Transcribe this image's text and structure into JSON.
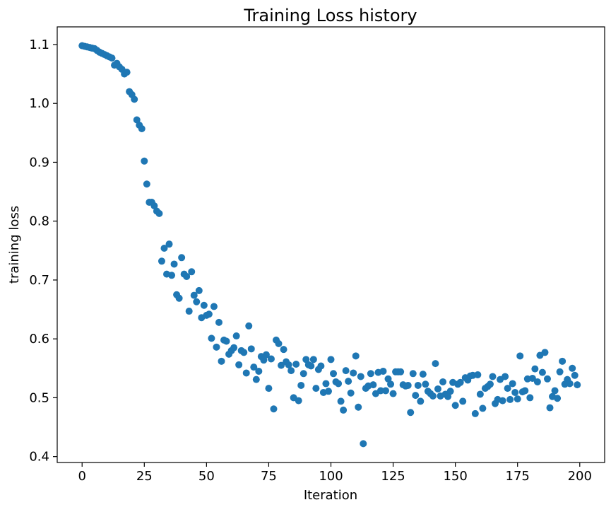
{
  "chart_data": {
    "type": "scatter",
    "title": "Training Loss history",
    "xlabel": "Iteration",
    "ylabel": "training loss",
    "xlim": [
      -10,
      210
    ],
    "ylim": [
      0.39,
      1.13
    ],
    "xticks": [
      0,
      25,
      50,
      75,
      100,
      125,
      150,
      175,
      200
    ],
    "xtick_labels": [
      "0",
      "25",
      "50",
      "75",
      "100",
      "125",
      "150",
      "175",
      "200"
    ],
    "yticks": [
      0.4,
      0.5,
      0.6,
      0.7,
      0.8,
      0.9,
      1.0,
      1.1
    ],
    "ytick_labels": [
      "0.4",
      "0.5",
      "0.6",
      "0.7",
      "0.8",
      "0.9",
      "1.0",
      "1.1"
    ],
    "grid": false,
    "marker_color": "#1f77b4",
    "series": [
      {
        "x": [
          0,
          1,
          2,
          3,
          4,
          5,
          6,
          7,
          8,
          9,
          10,
          11,
          12,
          13,
          14,
          15,
          16,
          17,
          18,
          19,
          20,
          21,
          22,
          23,
          24,
          25,
          26,
          27,
          28,
          29,
          30,
          31,
          32,
          33,
          34,
          35,
          36,
          37,
          38,
          39,
          40,
          41,
          42,
          43,
          44,
          45,
          46,
          47,
          48,
          49,
          50,
          51,
          52,
          53,
          54,
          55,
          56,
          57,
          58,
          59,
          60,
          61,
          62,
          63,
          64,
          65,
          66,
          67,
          68,
          69,
          70,
          71,
          72,
          73,
          74,
          75,
          76,
          77,
          78,
          79,
          80,
          81,
          82,
          83,
          84,
          85,
          86,
          87,
          88,
          89,
          90,
          91,
          92,
          93,
          94,
          95,
          96,
          97,
          98,
          99,
          100,
          101,
          102,
          103,
          104,
          105,
          106,
          107,
          108,
          109,
          110,
          111,
          112,
          113,
          114,
          115,
          116,
          117,
          118,
          119,
          120,
          121,
          122,
          123,
          124,
          125,
          126,
          127,
          128,
          129,
          130,
          131,
          132,
          133,
          134,
          135,
          136,
          137,
          138,
          139,
          140,
          141,
          142,
          143,
          144,
          145,
          146,
          147,
          148,
          149,
          150,
          151,
          152,
          153,
          154,
          155,
          156,
          157,
          158,
          159,
          160,
          161,
          162,
          163,
          164,
          165,
          166,
          167,
          168,
          169,
          170,
          171,
          172,
          173,
          174,
          175,
          176,
          177,
          178,
          179,
          180,
          181,
          182,
          183,
          184,
          185,
          186,
          187,
          188,
          189,
          190,
          191,
          192,
          193,
          194,
          195,
          196,
          197,
          198,
          199
        ],
        "y": [
          1.098,
          1.097,
          1.096,
          1.095,
          1.094,
          1.093,
          1.09,
          1.087,
          1.085,
          1.083,
          1.081,
          1.079,
          1.077,
          1.065,
          1.068,
          1.062,
          1.058,
          1.05,
          1.053,
          1.02,
          1.015,
          1.007,
          0.972,
          0.963,
          0.957,
          0.902,
          0.863,
          0.832,
          0.832,
          0.826,
          0.817,
          0.813,
          0.732,
          0.754,
          0.71,
          0.761,
          0.708,
          0.727,
          0.675,
          0.669,
          0.738,
          0.71,
          0.706,
          0.647,
          0.714,
          0.674,
          0.663,
          0.682,
          0.636,
          0.657,
          0.64,
          0.642,
          0.601,
          0.655,
          0.586,
          0.628,
          0.562,
          0.598,
          0.596,
          0.574,
          0.58,
          0.585,
          0.605,
          0.556,
          0.58,
          0.577,
          0.542,
          0.622,
          0.583,
          0.552,
          0.531,
          0.545,
          0.57,
          0.564,
          0.573,
          0.516,
          0.566,
          0.481,
          0.598,
          0.592,
          0.555,
          0.582,
          0.561,
          0.556,
          0.546,
          0.5,
          0.557,
          0.495,
          0.521,
          0.541,
          0.565,
          0.556,
          0.554,
          0.565,
          0.516,
          0.548,
          0.554,
          0.509,
          0.524,
          0.511,
          0.565,
          0.541,
          0.527,
          0.524,
          0.494,
          0.479,
          0.546,
          0.528,
          0.508,
          0.542,
          0.571,
          0.484,
          0.536,
          0.422,
          0.516,
          0.52,
          0.541,
          0.522,
          0.507,
          0.543,
          0.512,
          0.545,
          0.512,
          0.532,
          0.523,
          0.507,
          0.544,
          0.544,
          0.544,
          0.522,
          0.52,
          0.521,
          0.475,
          0.541,
          0.504,
          0.521,
          0.494,
          0.54,
          0.523,
          0.511,
          0.507,
          0.503,
          0.558,
          0.515,
          0.503,
          0.527,
          0.506,
          0.502,
          0.511,
          0.526,
          0.487,
          0.523,
          0.526,
          0.494,
          0.534,
          0.53,
          0.537,
          0.538,
          0.473,
          0.539,
          0.506,
          0.482,
          0.516,
          0.519,
          0.523,
          0.536,
          0.49,
          0.497,
          0.531,
          0.495,
          0.536,
          0.516,
          0.497,
          0.524,
          0.509,
          0.498,
          0.571,
          0.51,
          0.512,
          0.532,
          0.5,
          0.533,
          0.549,
          0.527,
          0.572,
          0.543,
          0.577,
          0.532,
          0.483,
          0.502,
          0.512,
          0.499,
          0.544,
          0.562,
          0.523,
          0.531,
          0.524,
          0.55,
          0.538,
          0.522
        ]
      }
    ]
  }
}
